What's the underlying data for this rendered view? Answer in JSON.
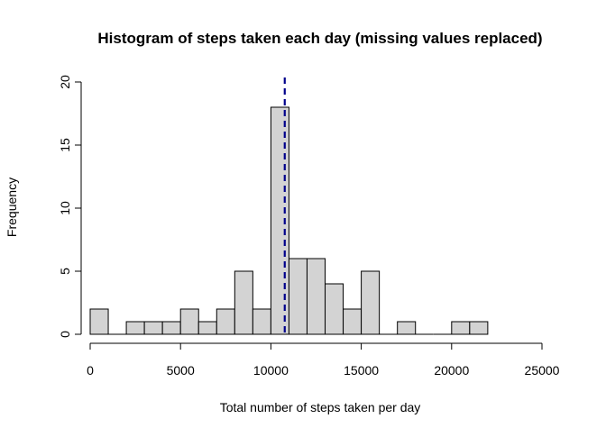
{
  "chart_data": {
    "type": "histogram",
    "title": "Histogram of steps taken each day (missing values replaced)",
    "xlabel": "Total number of steps taken per day",
    "ylabel": "Frequency",
    "xlim": [
      0,
      25000
    ],
    "ylim": [
      0,
      20
    ],
    "x_ticks": [
      0,
      5000,
      10000,
      15000,
      20000,
      25000
    ],
    "y_ticks": [
      0,
      5,
      10,
      15,
      20
    ],
    "bin_width": 1000,
    "bins": [
      {
        "start": 0,
        "end": 1000,
        "count": 2
      },
      {
        "start": 1000,
        "end": 2000,
        "count": 0
      },
      {
        "start": 2000,
        "end": 3000,
        "count": 1
      },
      {
        "start": 3000,
        "end": 4000,
        "count": 1
      },
      {
        "start": 4000,
        "end": 5000,
        "count": 1
      },
      {
        "start": 5000,
        "end": 6000,
        "count": 2
      },
      {
        "start": 6000,
        "end": 7000,
        "count": 1
      },
      {
        "start": 7000,
        "end": 8000,
        "count": 2
      },
      {
        "start": 8000,
        "end": 9000,
        "count": 5
      },
      {
        "start": 9000,
        "end": 10000,
        "count": 2
      },
      {
        "start": 10000,
        "end": 11000,
        "count": 18
      },
      {
        "start": 11000,
        "end": 12000,
        "count": 6
      },
      {
        "start": 12000,
        "end": 13000,
        "count": 6
      },
      {
        "start": 13000,
        "end": 14000,
        "count": 4
      },
      {
        "start": 14000,
        "end": 15000,
        "count": 2
      },
      {
        "start": 15000,
        "end": 16000,
        "count": 5
      },
      {
        "start": 16000,
        "end": 17000,
        "count": 0
      },
      {
        "start": 17000,
        "end": 18000,
        "count": 1
      },
      {
        "start": 18000,
        "end": 19000,
        "count": 0
      },
      {
        "start": 19000,
        "end": 20000,
        "count": 0
      },
      {
        "start": 20000,
        "end": 21000,
        "count": 1
      },
      {
        "start": 21000,
        "end": 22000,
        "count": 1
      }
    ],
    "reference_line": {
      "x": 10766,
      "color": "#00008B",
      "style": "dashed"
    },
    "bar_fill": "#D3D3D3",
    "bar_stroke": "#000000",
    "grid": false,
    "legend": "none"
  }
}
